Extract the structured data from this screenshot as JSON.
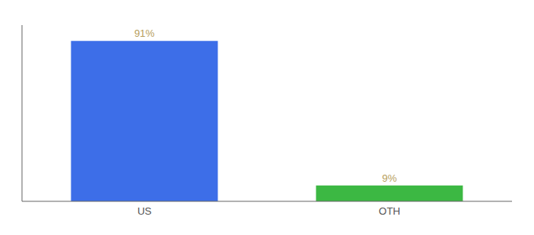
{
  "chart_data": {
    "type": "bar",
    "categories": [
      "US",
      "OTH"
    ],
    "values": [
      91,
      9
    ],
    "value_labels": [
      "91%",
      "9%"
    ],
    "colors": [
      "#3d6ee8",
      "#3cb843"
    ],
    "ylim": [
      0,
      100
    ],
    "data_labels": true,
    "tick_labels": "x",
    "grid": false
  }
}
